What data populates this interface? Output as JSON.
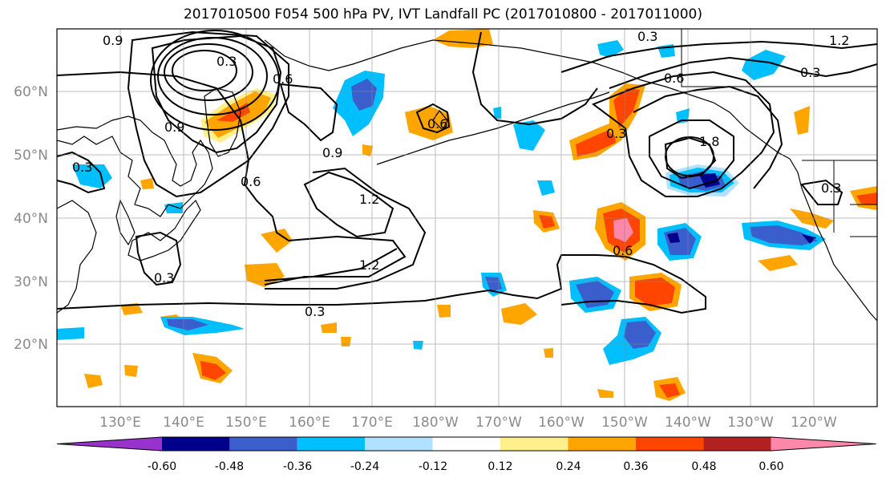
{
  "title": "2017010500 F054 500 hPa PV, IVT Landfall PC (2017010800 - 2017011000)",
  "lat_labels": [
    "60°N",
    "50°N",
    "40°N",
    "30°N",
    "20°N"
  ],
  "lon_labels": [
    "130°E",
    "140°E",
    "150°E",
    "160°E",
    "170°E",
    "180°W",
    "170°W",
    "160°W",
    "150°W",
    "140°W",
    "130°W",
    "120°W"
  ],
  "contour_labels": [
    "0.9",
    "0.3",
    "0.6",
    "0.3",
    "0.6",
    "1.2",
    "0.9",
    "0.3",
    "0.6",
    "0.9",
    "1.2",
    "1.2",
    "0.3",
    "0.3",
    "0.3",
    "0.6",
    "1.8",
    "0.3",
    "0.6",
    "0.3"
  ],
  "colorbar": {
    "tick_labels": [
      "-0.60",
      "-0.48",
      "-0.36",
      "-0.24",
      "-0.12",
      "0.12",
      "0.24",
      "0.36",
      "0.48",
      "0.60"
    ],
    "colors": [
      "#9932cc",
      "#00008b",
      "#3a5fcd",
      "#00bfff",
      "#b0e2ff",
      "#ffffff",
      "#fff08c",
      "#ffa500",
      "#ff4500",
      "#b22222",
      "#ff88aa"
    ]
  },
  "palette": {
    "neg_strong": "#00008b",
    "neg_mid": "#3a5fcd",
    "neg_light": "#00bfff",
    "pos_light": "#fff08c",
    "pos_mid": "#ffa500",
    "pos_strong": "#ff4500",
    "pos_max": "#ff88aa"
  }
}
